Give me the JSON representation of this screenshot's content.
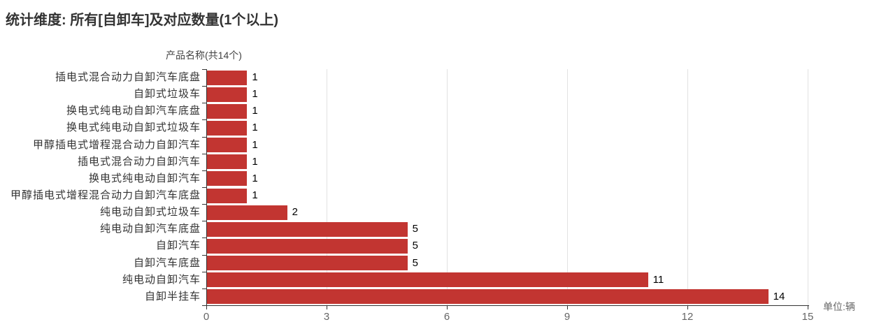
{
  "title": "统计维度: 所有[自卸车]及对应数量(1个以上)",
  "y_axis_name": "产品名称(共14个)",
  "unit_label": "单位:辆",
  "colors": {
    "bar": "#c23531",
    "axis": "#333333",
    "gridline": "#e2e2e2",
    "tick_label": "#666666",
    "category_label": "#333333",
    "value_label": "#000000",
    "title": "#333333"
  },
  "chart_data": {
    "type": "bar",
    "orientation": "horizontal",
    "title": "统计维度: 所有[自卸车]及对应数量(1个以上)",
    "y_axis_title": "产品名称(共14个)",
    "unit": "单位:辆",
    "categories": [
      "插电式混合动力自卸汽车底盘",
      "自卸式垃圾车",
      "换电式纯电动自卸汽车底盘",
      "换电式纯电动自卸式垃圾车",
      "甲醇插电式增程混合动力自卸汽车",
      "插电式混合动力自卸汽车",
      "换电式纯电动自卸汽车",
      "甲醇插电式增程混合动力自卸汽车底盘",
      "纯电动自卸式垃圾车",
      "纯电动自卸汽车底盘",
      "自卸汽车",
      "自卸汽车底盘",
      "纯电动自卸汽车",
      "自卸半挂车"
    ],
    "values": [
      1,
      1,
      1,
      1,
      1,
      1,
      1,
      1,
      2,
      5,
      5,
      5,
      11,
      14
    ],
    "x_ticks": [
      0,
      3,
      6,
      9,
      12,
      15
    ],
    "xlim": [
      0,
      15
    ],
    "value_labels_shown": true,
    "legend": "none",
    "grid": "vertical-gridlines"
  }
}
